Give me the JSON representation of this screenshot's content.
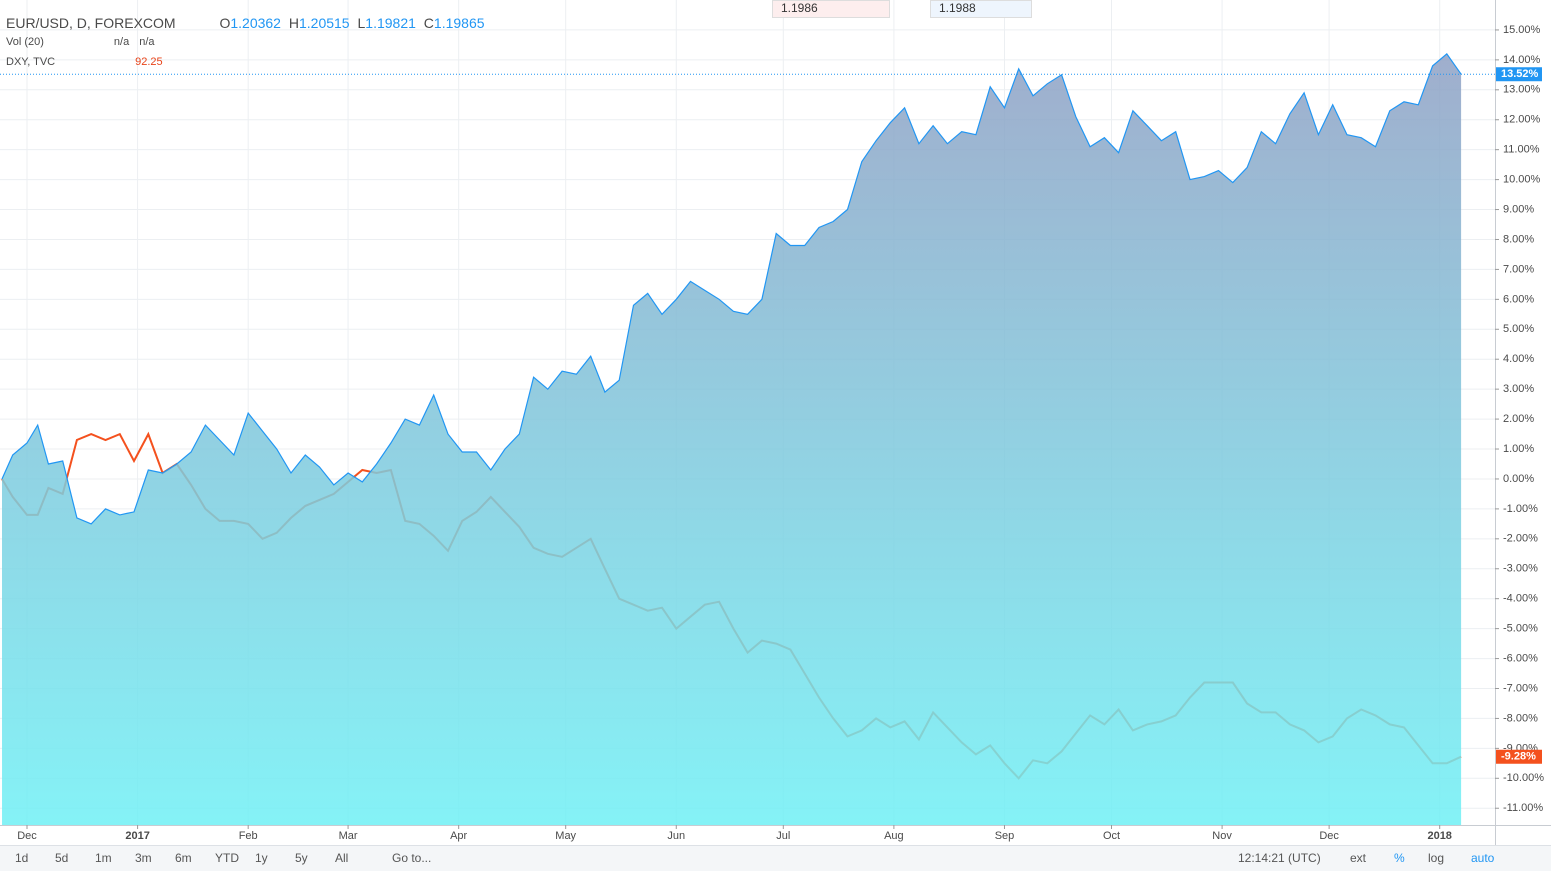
{
  "header": {
    "symbol": "EUR/USD, D, FOREXCOM",
    "o_label": "O",
    "open": 1.20362,
    "h_label": "H",
    "high": 1.20515,
    "l_label": "L",
    "low": 1.19821,
    "c_label": "C",
    "close": 1.19865,
    "vol_label": "Vol (20)",
    "vol_a": "n/a",
    "vol_b": "n/a",
    "compare_symbol": "DXY, TVC",
    "compare_value": 92.25,
    "sell": 1.1986,
    "buy": 1.1988
  },
  "chart_data": {
    "type": "area",
    "x": [
      -7,
      -4,
      0,
      3,
      6,
      10,
      14,
      18,
      22,
      26,
      30,
      34,
      38,
      42,
      46,
      50,
      54,
      58,
      62,
      66,
      70,
      74,
      78,
      82,
      86,
      90,
      94,
      98,
      102,
      106,
      110,
      114,
      118,
      122,
      126,
      130,
      134,
      138,
      142,
      146,
      150,
      154,
      158,
      162,
      166,
      170,
      174,
      178,
      182,
      186,
      190,
      194,
      198,
      202,
      206,
      210,
      214,
      218,
      222,
      226,
      230,
      234,
      238,
      242,
      246,
      250,
      254,
      258,
      262,
      266,
      270,
      274,
      278,
      282,
      286,
      290,
      294,
      298,
      302,
      306,
      310,
      314,
      318,
      322,
      326,
      330,
      334,
      338,
      342,
      346,
      350,
      354,
      358,
      362,
      366,
      370,
      374,
      378,
      382,
      386,
      390,
      394,
      398,
      402
    ],
    "series": [
      {
        "name": "EUR/USD, D, FOREXCOM",
        "color": "#2196f3",
        "values": [
          0,
          0.8,
          1.2,
          1.8,
          0.5,
          0.6,
          -1.3,
          -1.5,
          -1.0,
          -1.2,
          -1.1,
          0.3,
          0.2,
          0.5,
          0.9,
          1.8,
          1.3,
          0.8,
          2.2,
          1.6,
          1.0,
          0.2,
          0.8,
          0.4,
          -0.2,
          0.2,
          -0.1,
          0.5,
          1.2,
          2.0,
          1.8,
          2.8,
          1.5,
          0.9,
          0.9,
          0.3,
          1.0,
          1.5,
          3.4,
          3.0,
          3.6,
          3.5,
          4.1,
          2.9,
          3.3,
          5.8,
          6.2,
          5.5,
          6.0,
          6.6,
          6.3,
          6.0,
          5.6,
          5.5,
          6.0,
          8.2,
          7.8,
          7.8,
          8.4,
          8.6,
          9.0,
          10.6,
          11.3,
          11.9,
          12.4,
          11.2,
          11.8,
          11.2,
          11.6,
          11.5,
          13.1,
          12.4,
          13.7,
          12.8,
          13.2,
          13.5,
          12.1,
          11.1,
          11.4,
          10.9,
          12.3,
          11.8,
          11.3,
          11.6,
          10.0,
          10.1,
          10.3,
          9.9,
          10.4,
          11.6,
          11.2,
          12.2,
          12.9,
          11.5,
          12.5,
          11.5,
          11.4,
          11.1,
          12.3,
          12.6,
          12.5,
          13.8,
          14.2,
          13.52
        ],
        "last_value": {
          "value": 13.52,
          "label": "13.52%"
        }
      },
      {
        "name": "DXY, TVC",
        "color": "#f4511e",
        "values": [
          0,
          -0.6,
          -1.2,
          -1.2,
          -0.3,
          -0.5,
          1.3,
          1.5,
          1.3,
          1.5,
          0.6,
          1.5,
          0.2,
          0.5,
          -0.2,
          -1.0,
          -1.4,
          -1.4,
          -1.5,
          -2.0,
          -1.8,
          -1.3,
          -0.9,
          -0.7,
          -0.5,
          -0.1,
          0.3,
          0.2,
          0.3,
          -1.4,
          -1.5,
          -1.9,
          -2.4,
          -1.4,
          -1.1,
          -0.6,
          -1.1,
          -1.6,
          -2.3,
          -2.5,
          -2.6,
          -2.3,
          -2.0,
          -3.0,
          -4.0,
          -4.2,
          -4.4,
          -4.3,
          -5.0,
          -4.6,
          -4.2,
          -4.1,
          -5.0,
          -5.8,
          -5.4,
          -5.5,
          -5.7,
          -6.5,
          -7.3,
          -8.0,
          -8.6,
          -8.4,
          -8.0,
          -8.3,
          -8.1,
          -8.7,
          -7.8,
          -8.3,
          -8.8,
          -9.2,
          -8.9,
          -9.5,
          -10.0,
          -9.4,
          -9.5,
          -9.1,
          -8.5,
          -7.9,
          -8.2,
          -7.7,
          -8.4,
          -8.2,
          -8.1,
          -7.9,
          -7.3,
          -6.8,
          -6.8,
          -6.8,
          -7.5,
          -7.8,
          -7.8,
          -8.2,
          -8.4,
          -8.8,
          -8.6,
          -8.0,
          -7.7,
          -7.9,
          -8.2,
          -8.3,
          -8.9,
          -9.5,
          -9.5,
          -9.28
        ],
        "last_value": {
          "value": -9.28,
          "label": "-9.28%"
        }
      }
    ],
    "xlim": [
      -7.57,
      411.5
    ],
    "xticks": [
      {
        "value": 0,
        "label": "Dec"
      },
      {
        "value": 31,
        "label": "2017"
      },
      {
        "value": 62,
        "label": "Feb"
      },
      {
        "value": 90,
        "label": "Mar"
      },
      {
        "value": 121,
        "label": "Apr"
      },
      {
        "value": 151,
        "label": "May"
      },
      {
        "value": 182,
        "label": "Jun"
      },
      {
        "value": 212,
        "label": "Jul"
      },
      {
        "value": 243,
        "label": "Aug"
      },
      {
        "value": 274,
        "label": "Sep"
      },
      {
        "value": 304,
        "label": "Oct"
      },
      {
        "value": 335,
        "label": "Nov"
      },
      {
        "value": 365,
        "label": "Dec"
      },
      {
        "value": 396,
        "label": "2018"
      }
    ],
    "ylim": [
      -11.56,
      16.0
    ],
    "yticks": [
      {
        "value": 15,
        "label": "15.00%"
      },
      {
        "value": 14,
        "label": "14.00%"
      },
      {
        "value": 13,
        "label": "13.00%"
      },
      {
        "value": 12,
        "label": "12.00%"
      },
      {
        "value": 11,
        "label": "11.00%"
      },
      {
        "value": 10,
        "label": "10.00%"
      },
      {
        "value": 9,
        "label": "9.00%"
      },
      {
        "value": 8,
        "label": "8.00%"
      },
      {
        "value": 7,
        "label": "7.00%"
      },
      {
        "value": 6,
        "label": "6.00%"
      },
      {
        "value": 5,
        "label": "5.00%"
      },
      {
        "value": 4,
        "label": "4.00%"
      },
      {
        "value": 3,
        "label": "3.00%"
      },
      {
        "value": 2,
        "label": "2.00%"
      },
      {
        "value": 1,
        "label": "1.00%"
      },
      {
        "value": 0,
        "label": "0.00%"
      },
      {
        "value": -1,
        "label": "-1.00%"
      },
      {
        "value": -2,
        "label": "-2.00%"
      },
      {
        "value": -3,
        "label": "-3.00%"
      },
      {
        "value": -4,
        "label": "-4.00%"
      },
      {
        "value": -5,
        "label": "-5.00%"
      },
      {
        "value": -6,
        "label": "-6.00%"
      },
      {
        "value": -7,
        "label": "-7.00%"
      },
      {
        "value": -8,
        "label": "-8.00%"
      },
      {
        "value": -9,
        "label": "-9.00%"
      },
      {
        "value": -10,
        "label": "-10.00%"
      },
      {
        "value": -11,
        "label": "-11.00%"
      }
    ],
    "grid": true
  },
  "toolbar": {
    "ranges": [
      "1d",
      "5d",
      "1m",
      "3m",
      "6m",
      "YTD",
      "1y",
      "5y",
      "All"
    ],
    "goto": "Go to...",
    "time": "12:14:21 (UTC)",
    "ext": "ext",
    "percent": "%",
    "log": "log",
    "auto": "auto"
  }
}
